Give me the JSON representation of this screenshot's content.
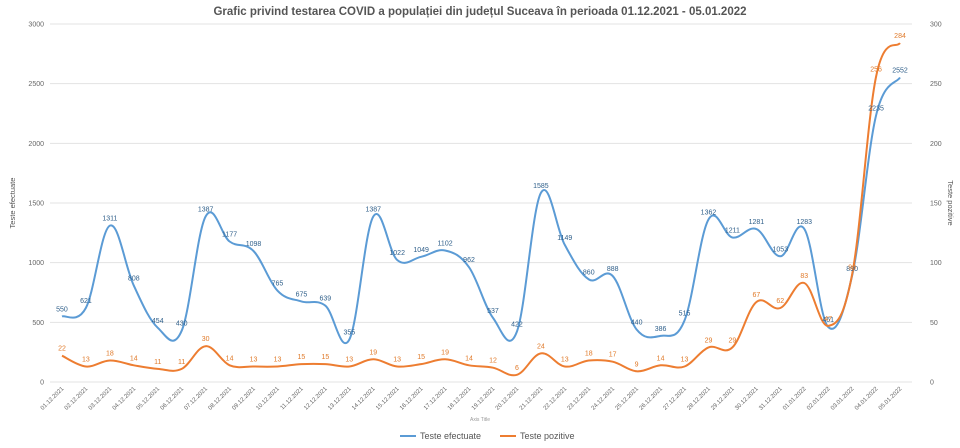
{
  "chart_data": {
    "type": "line",
    "title": "Grafic privind testarea COVID a populației din județul Suceava în perioada 01.12.2021 - 05.01.2022",
    "xlabel": "Axis Title",
    "ylabel": "Teste efectuate",
    "y2label": "Teste pozitive",
    "ylim": [
      0,
      3000
    ],
    "y2lim": [
      0,
      300
    ],
    "yticks": [
      "0",
      "500",
      "1000",
      "1500",
      "2000",
      "2500",
      "3000"
    ],
    "y2ticks": [
      "0",
      "50",
      "100",
      "150",
      "200",
      "250",
      "300"
    ],
    "grid": true,
    "legend_position": "bottom",
    "categories": [
      "01.12.2021",
      "02.12.2021",
      "03.12.2021",
      "04.12.2021",
      "05.12.2021",
      "06.12.2021",
      "07.12.2021",
      "08.12.2021",
      "09.12.2021",
      "10.12.2021",
      "11.12.2021",
      "12.12.2021",
      "13.12.2021",
      "14.12.2021",
      "15.12.2021",
      "16.12.2021",
      "17.12.2021",
      "18.12.2021",
      "19.12.2021",
      "20.12.2021",
      "21.12.2021",
      "22.12.2021",
      "23.12.2021",
      "24.12.2021",
      "25.12.2021",
      "26.12.2021",
      "27.12.2021",
      "28.12.2021",
      "29.12.2021",
      "30.12.2021",
      "31.12.2021",
      "01.01.2022",
      "02.01.2022",
      "03.01.2022",
      "04.01.2022",
      "05.01.2022"
    ],
    "series": [
      {
        "name": "Teste efectuate",
        "axis": "left",
        "color": "#5b9bd5",
        "values": [
          550,
          621,
          1311,
          808,
          454,
          430,
          1387,
          1177,
          1098,
          765,
          675,
          639,
          355,
          1387,
          1022,
          1049,
          1102,
          962,
          537,
          422,
          1585,
          1149,
          860,
          888,
          440,
          386,
          515,
          1362,
          1211,
          1281,
          1053,
          1283,
          461,
          890,
          2235,
          2552
        ]
      },
      {
        "name": "Teste pozitive",
        "axis": "right",
        "color": "#ed7d31",
        "values": [
          22,
          13,
          18,
          14,
          11,
          11,
          30,
          14,
          13,
          13,
          15,
          15,
          13,
          19,
          13,
          15,
          19,
          14,
          12,
          6,
          24,
          13,
          18,
          17,
          9,
          14,
          13,
          29,
          29,
          67,
          62,
          83,
          47,
          90,
          256,
          284
        ]
      }
    ]
  }
}
